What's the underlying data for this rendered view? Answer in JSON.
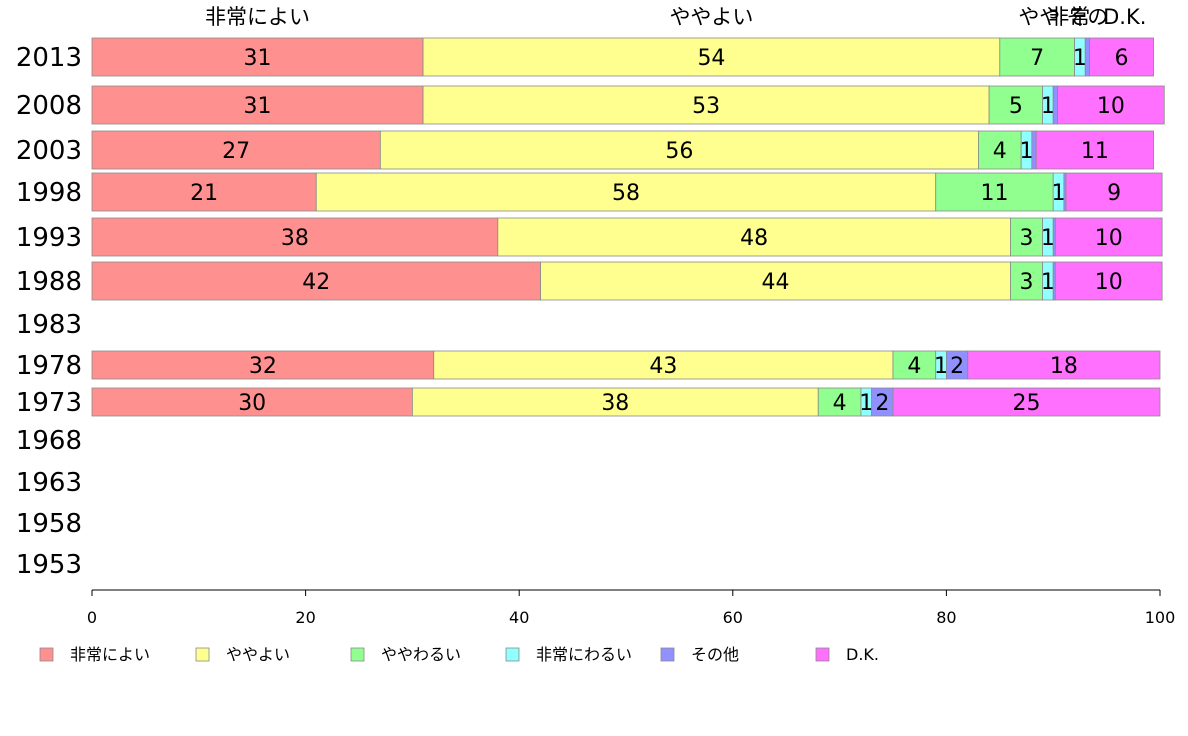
{
  "chart_data": {
    "type": "bar",
    "orientation": "horizontal",
    "stacked": true,
    "title": "",
    "xlabel": "",
    "ylabel": "",
    "xlim": [
      0,
      100
    ],
    "x_ticks": [
      0,
      20,
      40,
      60,
      80,
      100
    ],
    "grid": false,
    "legend_position": "bottom",
    "categories": [
      "2013",
      "2008",
      "2003",
      "1998",
      "1993",
      "1988",
      "1983",
      "1978",
      "1973",
      "1968",
      "1963",
      "1958",
      "1953"
    ],
    "series": [
      {
        "name": "非常によい",
        "color": "#ff9090",
        "values": [
          31,
          31,
          27,
          21,
          38,
          42,
          null,
          32,
          30,
          null,
          null,
          null,
          null
        ]
      },
      {
        "name": "ややよい",
        "color": "#ffff90",
        "values": [
          54,
          53,
          56,
          58,
          48,
          44,
          null,
          43,
          38,
          null,
          null,
          null,
          null
        ]
      },
      {
        "name": "ややわるい",
        "color": "#90ff90",
        "values": [
          7,
          5,
          4,
          11,
          3,
          3,
          null,
          4,
          4,
          null,
          null,
          null,
          null
        ]
      },
      {
        "name": "非常にわるい",
        "color": "#90ffff",
        "values": [
          1,
          1,
          1,
          1,
          1,
          1,
          null,
          1,
          1,
          null,
          null,
          null,
          null
        ]
      },
      {
        "name": "その他",
        "color": "#9090ff",
        "values": [
          0.4,
          0.4,
          0.4,
          0.2,
          0.2,
          0.2,
          null,
          2,
          2,
          null,
          null,
          null,
          null
        ]
      },
      {
        "name": "D.K.",
        "color": "#ff70ff",
        "values": [
          6,
          10,
          11,
          9,
          10,
          10,
          null,
          18,
          25,
          null,
          null,
          null,
          null
        ]
      }
    ],
    "top_labels": [
      {
        "text": "非常によい",
        "x": 15.5
      },
      {
        "text": "ややよい",
        "x": 58
      },
      {
        "text": "やや",
        "x": 88.7
      },
      {
        "text": "非常",
        "x": 91.5
      },
      {
        "text": "その",
        "x": 93.2
      },
      {
        "text": "D.K.",
        "x": 96.7
      }
    ]
  }
}
